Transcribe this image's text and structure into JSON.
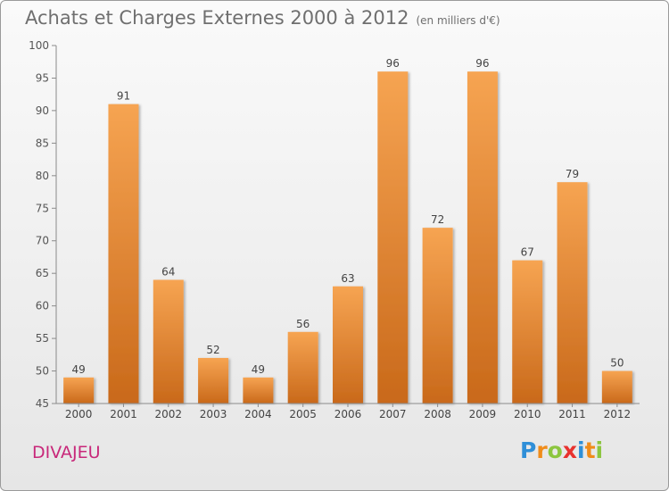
{
  "title": "Achats et Charges Externes 2000 à 2012",
  "unit_note": "(en milliers d'€)",
  "commune": "DIVAJEU",
  "logo": {
    "letters": [
      {
        "ch": "P",
        "color": "#2f8fd8"
      },
      {
        "ch": "r",
        "color": "#f08c1a"
      },
      {
        "ch": "o",
        "color": "#8cc63f"
      },
      {
        "ch": "x",
        "color": "#e8322e"
      },
      {
        "ch": "i",
        "color": "#2f8fd8"
      },
      {
        "ch": "t",
        "color": "#f08c1a"
      },
      {
        "ch": "i",
        "color": "#8cc63f"
      }
    ]
  },
  "chart_data": {
    "type": "bar",
    "title": "Achats et Charges Externes 2000 à 2012",
    "categories": [
      "2000",
      "2001",
      "2002",
      "2003",
      "2004",
      "2005",
      "2006",
      "2007",
      "2008",
      "2009",
      "2010",
      "2011",
      "2012"
    ],
    "values": [
      49,
      91,
      64,
      52,
      49,
      56,
      63,
      96,
      72,
      96,
      67,
      79,
      50
    ],
    "data_labels": [
      "49",
      "91",
      "64",
      "52",
      "49",
      "56",
      "63",
      "96",
      "72",
      "96",
      "67",
      "79",
      "50"
    ],
    "ylim": [
      45,
      100
    ],
    "yticks": [
      45,
      50,
      55,
      60,
      65,
      70,
      75,
      80,
      85,
      90,
      95,
      100
    ],
    "grid": false,
    "legend": "none",
    "bar_color_top": "#f6a452",
    "bar_color_bottom": "#c9691a"
  }
}
